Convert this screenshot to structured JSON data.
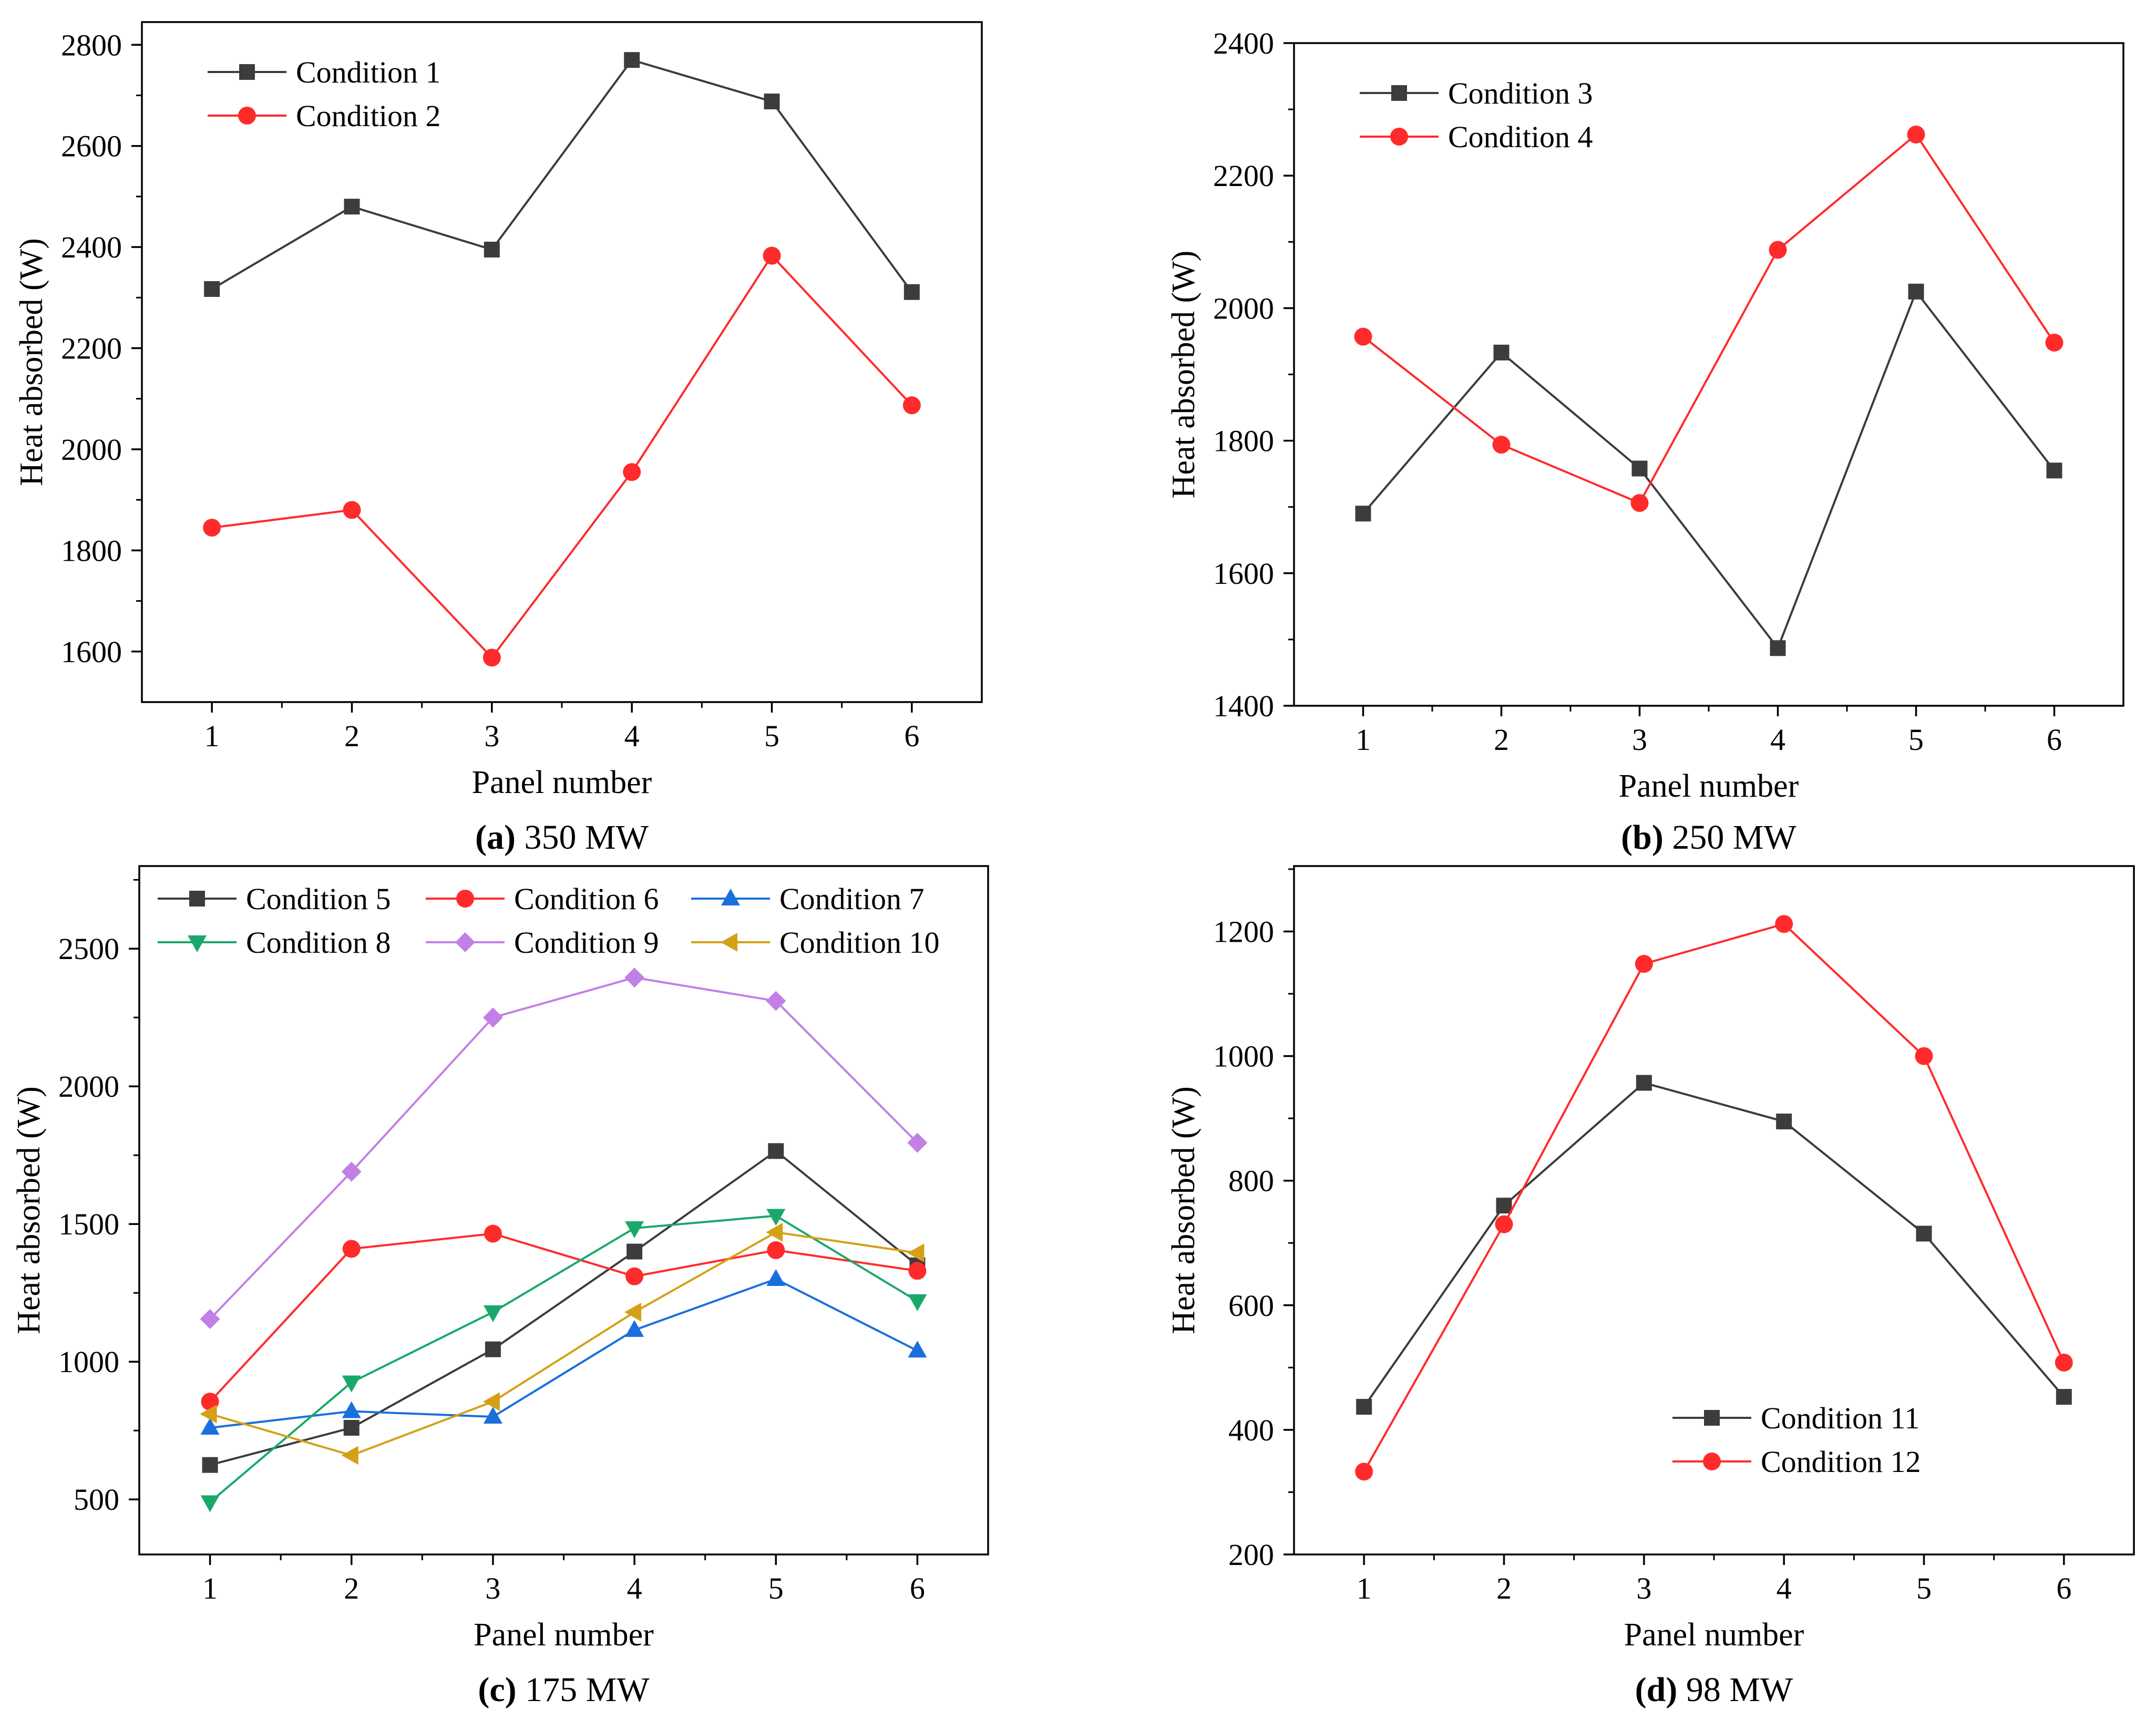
{
  "colors": {
    "black": "#3c3c3c",
    "red": "#ff2b2b",
    "blue": "#1a6fdc",
    "green": "#1aa86a",
    "purple": "#c280e6",
    "gold": "#d4a017",
    "axis": "#000000"
  },
  "chart_data": [
    {
      "type": "line",
      "panel": "a",
      "caption_label": "(a)",
      "caption_text": "350 MW",
      "xlabel": "Panel number",
      "ylabel": "Heat absorbed (W)",
      "categories": [
        "1",
        "2",
        "3",
        "4",
        "5",
        "6"
      ],
      "xlim": [
        0.5,
        6.5
      ],
      "ylim": [
        1500,
        2845
      ],
      "yticks": [
        1600,
        1800,
        2000,
        2200,
        2400,
        2600,
        2800
      ],
      "legend_position": "top-left",
      "legend_columns": 1,
      "series": [
        {
          "name": "Condition 1",
          "color": "black",
          "marker": "square",
          "values": [
            2317,
            2480,
            2395,
            2770,
            2688,
            2311
          ]
        },
        {
          "name": "Condition 2",
          "color": "red",
          "marker": "circle",
          "values": [
            1845,
            1880,
            1588,
            1955,
            2383,
            2087
          ]
        }
      ]
    },
    {
      "type": "line",
      "panel": "b",
      "caption_label": "(b)",
      "caption_text": "250 MW",
      "xlabel": "Panel number",
      "ylabel": "Heat absorbed (W)",
      "categories": [
        "1",
        "2",
        "3",
        "4",
        "5",
        "6"
      ],
      "xlim": [
        0.5,
        6.5
      ],
      "ylim": [
        1400,
        2400
      ],
      "yticks": [
        1400,
        1600,
        1800,
        2000,
        2200,
        2400
      ],
      "legend_position": "top-left",
      "legend_columns": 1,
      "series": [
        {
          "name": "Condition 3",
          "color": "black",
          "marker": "square",
          "values": [
            1690,
            1933,
            1758,
            1487,
            2025,
            1755
          ]
        },
        {
          "name": "Condition 4",
          "color": "red",
          "marker": "circle",
          "values": [
            1957,
            1794,
            1706,
            2088,
            2262,
            1948
          ]
        }
      ]
    },
    {
      "type": "line",
      "panel": "c",
      "caption_label": "(c)",
      "caption_text": "175 MW",
      "xlabel": "Panel number",
      "ylabel": "Heat absorbed (W)",
      "categories": [
        "1",
        "2",
        "3",
        "4",
        "5",
        "6"
      ],
      "xlim": [
        0.5,
        6.5
      ],
      "ylim": [
        300,
        2800
      ],
      "yticks": [
        500,
        1000,
        1500,
        2000,
        2500
      ],
      "legend_position": "top",
      "legend_columns": 3,
      "series": [
        {
          "name": "Condition 5",
          "color": "black",
          "marker": "square",
          "values": [
            625,
            760,
            1045,
            1400,
            1765,
            1350
          ]
        },
        {
          "name": "Condition 6",
          "color": "red",
          "marker": "circle",
          "values": [
            855,
            1410,
            1465,
            1310,
            1405,
            1330
          ]
        },
        {
          "name": "Condition 7",
          "color": "blue",
          "marker": "triangle-up",
          "values": [
            760,
            820,
            800,
            1115,
            1300,
            1040
          ]
        },
        {
          "name": "Condition 8",
          "color": "green",
          "marker": "triangle-down",
          "values": [
            490,
            925,
            1180,
            1485,
            1530,
            1220
          ]
        },
        {
          "name": "Condition 9",
          "color": "purple",
          "marker": "diamond",
          "values": [
            1155,
            1690,
            2250,
            2395,
            2310,
            1795
          ]
        },
        {
          "name": "Condition 10",
          "color": "gold",
          "marker": "triangle-left",
          "values": [
            810,
            660,
            855,
            1180,
            1470,
            1395
          ]
        }
      ]
    },
    {
      "type": "line",
      "panel": "d",
      "caption_label": "(d)",
      "caption_text": "98 MW",
      "xlabel": "Panel number",
      "ylabel": "Heat absorbed (W)",
      "categories": [
        "1",
        "2",
        "3",
        "4",
        "5",
        "6"
      ],
      "xlim": [
        0.5,
        6.5
      ],
      "ylim": [
        200,
        1305
      ],
      "yticks": [
        200,
        400,
        600,
        800,
        1000,
        1200
      ],
      "legend_position": "bottom-right",
      "legend_columns": 1,
      "series": [
        {
          "name": "Condition 11",
          "color": "black",
          "marker": "square",
          "values": [
            437,
            760,
            957,
            895,
            715,
            453
          ]
        },
        {
          "name": "Condition 12",
          "color": "red",
          "marker": "circle",
          "values": [
            333,
            730,
            1148,
            1212,
            1000,
            508
          ]
        }
      ]
    }
  ]
}
